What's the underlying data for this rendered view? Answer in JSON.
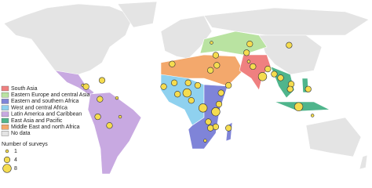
{
  "legend": {
    "regions": [
      {
        "label": "South Asia",
        "color": "#ef8080"
      },
      {
        "label": "Eastern Europe and central Asia",
        "color": "#b9e3a1"
      },
      {
        "label": "Eastern and southern Africa",
        "color": "#7f84d8"
      },
      {
        "label": "West and central Africa",
        "color": "#8fd1ef"
      },
      {
        "label": "Latin America and Caribbean",
        "color": "#c8a9e1"
      },
      {
        "label": "East Asia and Pacific",
        "color": "#4fb58c"
      },
      {
        "label": "Middle East and north Africa",
        "color": "#f3a86c"
      },
      {
        "label": "No data",
        "color": "#e4e4e4"
      }
    ],
    "size_title": "Number of surveys",
    "sizes": [
      1,
      4,
      8
    ]
  },
  "markers": [
    {
      "lon": -72,
      "lat": 19,
      "surveys": 4
    },
    {
      "lon": -90,
      "lat": 15,
      "surveys": 1
    },
    {
      "lon": -87,
      "lat": 14,
      "surveys": 4
    },
    {
      "lon": -74,
      "lat": 4,
      "surveys": 4
    },
    {
      "lon": -76,
      "lat": -10,
      "surveys": 4
    },
    {
      "lon": -65,
      "lat": -17,
      "surveys": 4
    },
    {
      "lon": -55,
      "lat": -10,
      "surveys": 1
    },
    {
      "lon": -58,
      "lat": 5,
      "surveys": 1
    },
    {
      "lon": -14,
      "lat": 14,
      "surveys": 4
    },
    {
      "lon": -4,
      "lat": 17,
      "surveys": 4
    },
    {
      "lon": -1,
      "lat": 8,
      "surveys": 4
    },
    {
      "lon": 8,
      "lat": 9,
      "surveys": 8
    },
    {
      "lon": 9,
      "lat": 17,
      "surveys": 4
    },
    {
      "lon": 18,
      "lat": 15,
      "surveys": 4
    },
    {
      "lon": 23,
      "lat": -3,
      "surveys": 8
    },
    {
      "lon": 12,
      "lat": 3,
      "surveys": 4
    },
    {
      "lon": 38,
      "lat": 0,
      "surveys": 4
    },
    {
      "lon": 40,
      "lat": 9,
      "surveys": 4
    },
    {
      "lon": 35,
      "lat": -6,
      "surveys": 8
    },
    {
      "lon": 35,
      "lat": -18,
      "surveys": 4
    },
    {
      "lon": 28,
      "lat": -14,
      "surveys": 4
    },
    {
      "lon": 30,
      "lat": -19,
      "surveys": 4
    },
    {
      "lon": 25,
      "lat": -29,
      "surveys": 1
    },
    {
      "lon": 47,
      "lat": -19,
      "surveys": 4
    },
    {
      "lon": 30,
      "lat": 27,
      "surveys": 4
    },
    {
      "lon": -6,
      "lat": 32,
      "surveys": 4
    },
    {
      "lon": 36,
      "lat": 31,
      "surveys": 4
    },
    {
      "lon": 47,
      "lat": 15,
      "surveys": 4
    },
    {
      "lon": 70,
      "lat": 30,
      "surveys": 4
    },
    {
      "lon": 79,
      "lat": 22,
      "surveys": 8
    },
    {
      "lon": 84,
      "lat": 28,
      "surveys": 4
    },
    {
      "lon": 90,
      "lat": 24,
      "surveys": 4
    },
    {
      "lon": 66,
      "lat": 34,
      "surveys": 1
    },
    {
      "lon": 67,
      "lat": 48,
      "surveys": 4
    },
    {
      "lon": 64,
      "lat": 41,
      "surveys": 4
    },
    {
      "lon": 31,
      "lat": 49,
      "surveys": 1
    },
    {
      "lon": 35,
      "lat": 39,
      "surveys": 4
    },
    {
      "lon": 106,
      "lat": 16,
      "surveys": 4
    },
    {
      "lon": 105,
      "lat": 12,
      "surveys": 4
    },
    {
      "lon": 122,
      "lat": 12,
      "surveys": 4
    },
    {
      "lon": 113,
      "lat": -2,
      "surveys": 8
    },
    {
      "lon": 96,
      "lat": 21,
      "surveys": 4
    },
    {
      "lon": 104,
      "lat": 47,
      "surveys": 4
    },
    {
      "lon": 126,
      "lat": -9,
      "surveys": 1
    }
  ]
}
